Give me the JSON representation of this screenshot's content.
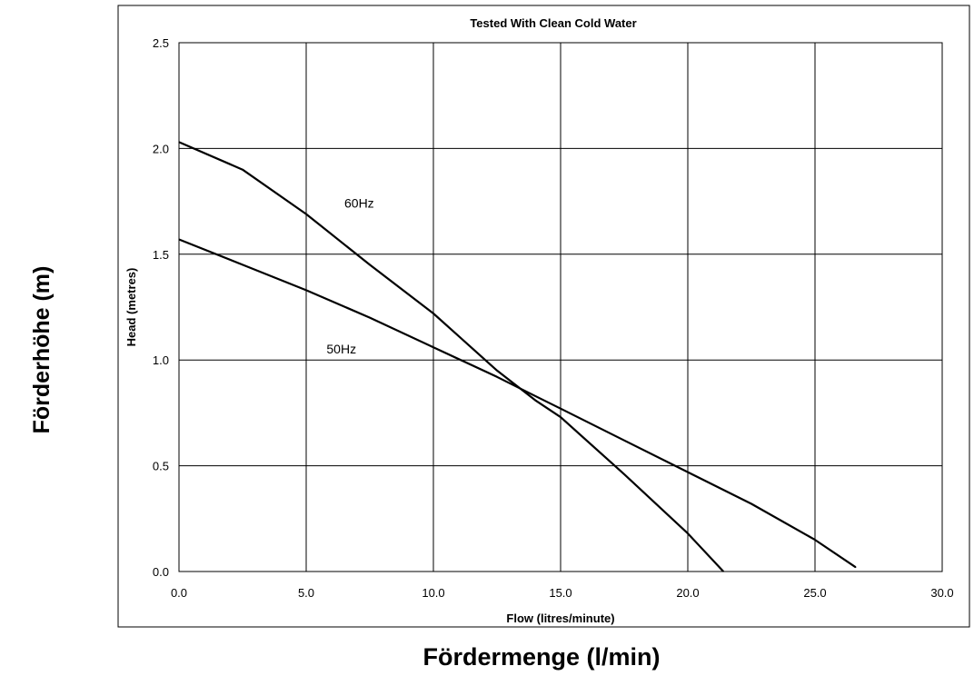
{
  "chart_data": {
    "type": "line",
    "title": "Tested With Clean Cold Water",
    "xlabel": "Flow (litres/minute)",
    "ylabel": "Head (metres)",
    "outer_xlabel": "Fördermenge (l/min)",
    "outer_ylabel": "Förderhöhe (m)",
    "xlim": [
      0,
      30
    ],
    "ylim": [
      0,
      2.5
    ],
    "grid": true,
    "x_ticks": [
      "0.0",
      "5.0",
      "10.0",
      "15.0",
      "20.0",
      "25.0",
      "30.0"
    ],
    "y_ticks": [
      "0.0",
      "0.5",
      "1.0",
      "1.5",
      "2.0",
      "2.5"
    ],
    "series": [
      {
        "name": "60Hz",
        "color": "#000000",
        "points": [
          [
            0,
            2.03
          ],
          [
            2.5,
            1.9
          ],
          [
            5.0,
            1.69
          ],
          [
            7.5,
            1.45
          ],
          [
            10.0,
            1.22
          ],
          [
            12.5,
            0.95
          ],
          [
            14.0,
            0.81
          ],
          [
            15.0,
            0.73
          ],
          [
            17.5,
            0.46
          ],
          [
            20.0,
            0.18
          ],
          [
            21.4,
            0.0
          ]
        ]
      },
      {
        "name": "50Hz",
        "color": "#000000",
        "points": [
          [
            0,
            1.57
          ],
          [
            2.5,
            1.45
          ],
          [
            5.0,
            1.33
          ],
          [
            7.5,
            1.2
          ],
          [
            10.0,
            1.06
          ],
          [
            12.5,
            0.92
          ],
          [
            14.0,
            0.83
          ],
          [
            15.0,
            0.77
          ],
          [
            17.5,
            0.62
          ],
          [
            20.0,
            0.47
          ],
          [
            22.5,
            0.32
          ],
          [
            25.0,
            0.15
          ],
          [
            26.6,
            0.02
          ]
        ]
      }
    ]
  }
}
